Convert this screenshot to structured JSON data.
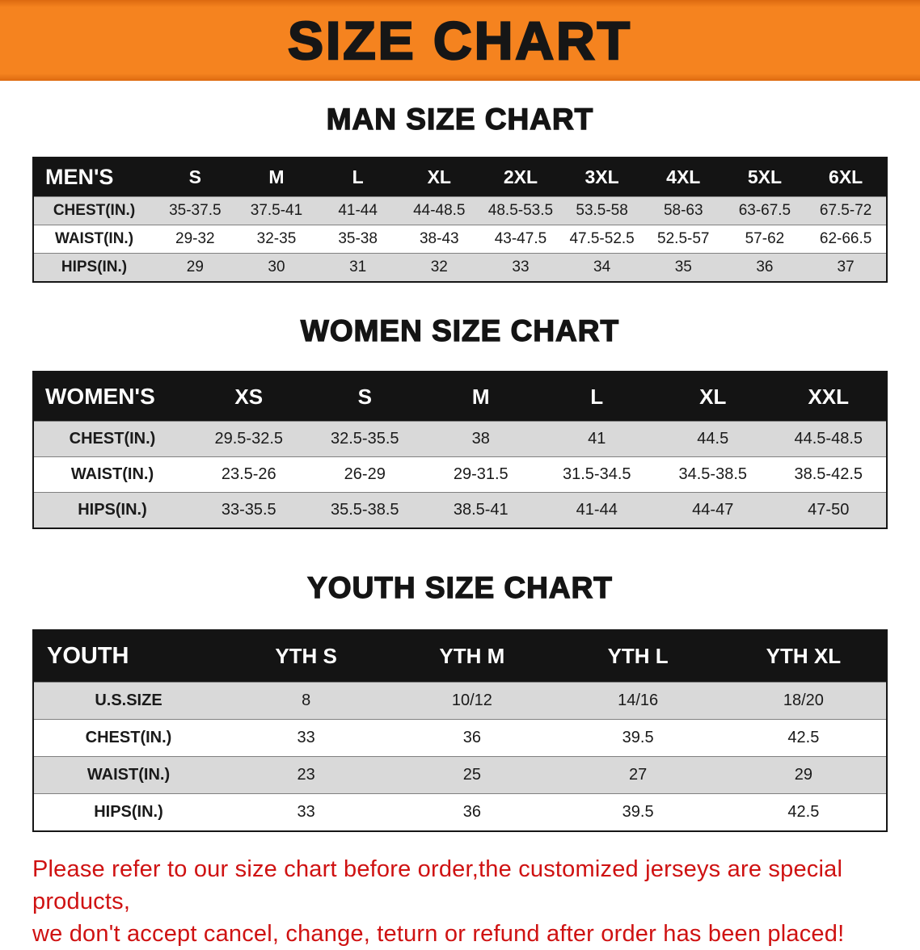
{
  "banner": {
    "title": "SIZE CHART",
    "bg_color": "#f5831f",
    "text_color": "#161616"
  },
  "sections": [
    {
      "heading": "MAN SIZE CHART",
      "table": {
        "header": [
          "MEN'S",
          "S",
          "M",
          "L",
          "XL",
          "2XL",
          "3XL",
          "4XL",
          "5XL",
          "6XL"
        ],
        "rows": [
          [
            "CHEST(IN.)",
            "35-37.5",
            "37.5-41",
            "41-44",
            "44-48.5",
            "48.5-53.5",
            "53.5-58",
            "58-63",
            "63-67.5",
            "67.5-72"
          ],
          [
            "WAIST(IN.)",
            "29-32",
            "32-35",
            "35-38",
            "38-43",
            "43-47.5",
            "47.5-52.5",
            "52.5-57",
            "57-62",
            "62-66.5"
          ],
          [
            "HIPS(IN.)",
            "29",
            "30",
            "31",
            "32",
            "33",
            "34",
            "35",
            "36",
            "37"
          ]
        ]
      }
    },
    {
      "heading": "WOMEN SIZE CHART",
      "table": {
        "header": [
          "WOMEN'S",
          "XS",
          "S",
          "M",
          "L",
          "XL",
          "XXL"
        ],
        "rows": [
          [
            "CHEST(IN.)",
            "29.5-32.5",
            "32.5-35.5",
            "38",
            "41",
            "44.5",
            "44.5-48.5"
          ],
          [
            "WAIST(IN.)",
            "23.5-26",
            "26-29",
            "29-31.5",
            "31.5-34.5",
            "34.5-38.5",
            "38.5-42.5"
          ],
          [
            "HIPS(IN.)",
            "33-35.5",
            "35.5-38.5",
            "38.5-41",
            "41-44",
            "44-47",
            "47-50"
          ]
        ]
      }
    },
    {
      "heading": "YOUTH SIZE CHART",
      "table": {
        "header": [
          "YOUTH",
          "YTH S",
          "YTH M",
          "YTH L",
          "YTH XL"
        ],
        "rows": [
          [
            "U.S.SIZE",
            "8",
            "10/12",
            "14/16",
            "18/20"
          ],
          [
            "CHEST(IN.)",
            "33",
            "36",
            "39.5",
            "42.5"
          ],
          [
            "WAIST(IN.)",
            "23",
            "25",
            "27",
            "29"
          ],
          [
            "HIPS(IN.)",
            "33",
            "36",
            "39.5",
            "42.5"
          ]
        ]
      }
    }
  ],
  "disclaimer": {
    "line1": "Please refer to our size chart before order,the customized jerseys are special products,",
    "line2": "we don't accept cancel, change, teturn or refund after order has been placed!",
    "color": "#cf1212"
  }
}
